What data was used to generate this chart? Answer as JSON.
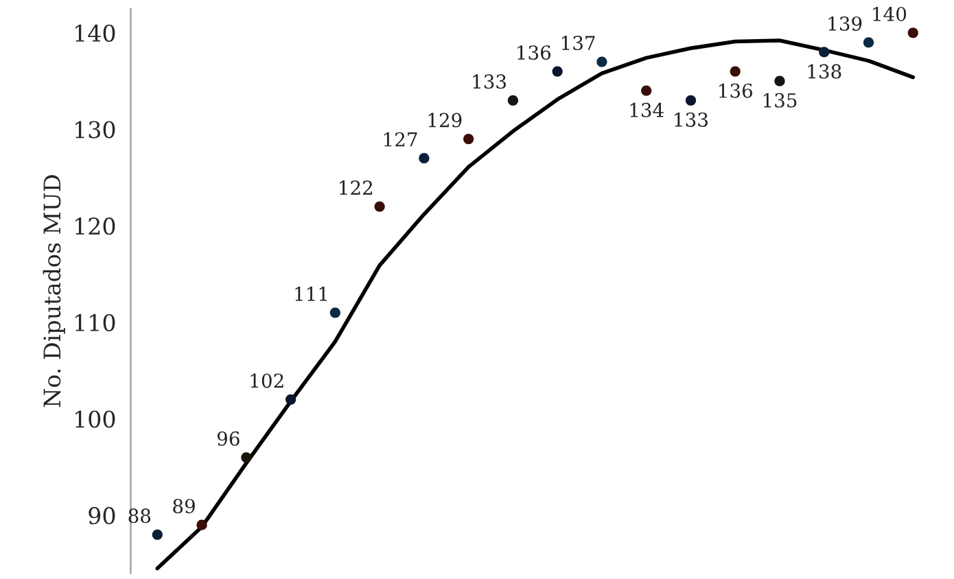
{
  "chart_data": {
    "type": "scatter",
    "ylabel": "No. Diputados MUD",
    "categories": [
      null,
      null,
      null,
      null,
      null,
      null,
      null,
      null,
      null,
      null,
      null,
      null,
      null,
      null,
      null,
      null,
      null,
      null
    ],
    "series": [
      {
        "type": "scatter",
        "marker": "circle",
        "values": [
          88,
          89,
          96,
          102,
          111,
          122,
          127,
          129,
          133,
          136,
          137,
          134,
          133,
          136,
          135,
          138,
          139,
          140
        ],
        "colors": [
          "#0b1f3a",
          "#3a0e08",
          "#1a1408",
          "#0b1530",
          "#0b2a45",
          "#3a0e08",
          "#0b1f3a",
          "#3a0e08",
          "#151515",
          "#0b1530",
          "#0b2a45",
          "#3a0e08",
          "#0b1530",
          "#3a0e08",
          "#151515",
          "#0b1f3a",
          "#0b2a45",
          "#3a0e08"
        ],
        "data_labels": true
      },
      {
        "type": "line",
        "color": "#000000",
        "line_style": "solid",
        "marker": "none",
        "values": [
          84.5,
          88.8,
          95.4,
          101.8,
          108,
          115.9,
          121.2,
          126.1,
          129.8,
          133.1,
          135.8,
          137.4,
          138.4,
          139.1,
          139.2,
          138.2,
          137.1,
          135.4
        ]
      }
    ],
    "ylim": [
      84,
      142.5
    ],
    "yticks": [
      90,
      100,
      110,
      120,
      130,
      140
    ],
    "grid": false,
    "tick_labels": "y"
  }
}
